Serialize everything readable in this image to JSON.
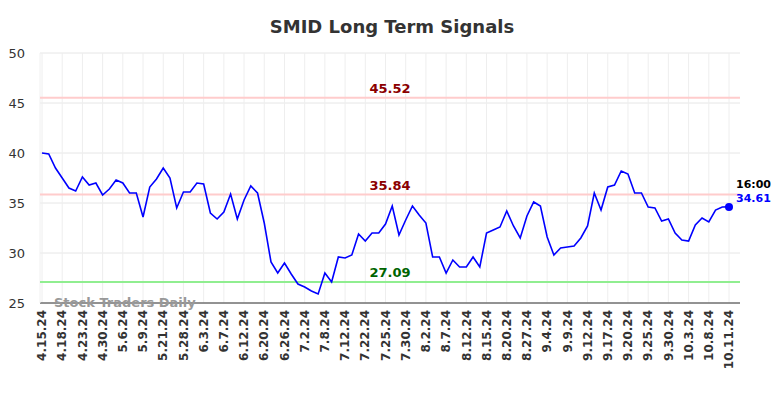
{
  "chart_data": {
    "type": "line",
    "title": "SMID Long Term Signals",
    "watermark": "Stock Traders Daily",
    "color": "#0000ff",
    "grid": true,
    "ylim": [
      25,
      50
    ],
    "yticks": [
      25,
      30,
      35,
      40,
      45,
      50
    ],
    "last_time": "16:00",
    "reference_lines": [
      {
        "value": 45.52,
        "color": "#ffcccc",
        "label_color": "#8b0000"
      },
      {
        "value": 35.84,
        "color": "#ffcccc",
        "label_color": "#8b0000"
      },
      {
        "value": 27.09,
        "color": "#90ee90",
        "label_color": "#006400"
      }
    ],
    "categories": [
      "4.15.24",
      null,
      null,
      "4.18.24",
      null,
      null,
      "4.23.24",
      null,
      null,
      "4.30.24",
      null,
      null,
      "5.6.24",
      null,
      null,
      "5.9.24",
      null,
      null,
      "5.21.24",
      null,
      null,
      "5.28.24",
      null,
      null,
      "6.3.24",
      null,
      null,
      "6.7.24",
      null,
      null,
      "6.12.24",
      null,
      null,
      "6.20.24",
      null,
      null,
      "6.26.24",
      null,
      null,
      "7.2.24",
      null,
      null,
      "7.8.24",
      null,
      null,
      "7.12.24",
      null,
      null,
      "7.22.24",
      null,
      null,
      "7.25.24",
      null,
      null,
      "7.30.24",
      null,
      null,
      "8.2.24",
      null,
      null,
      "8.7.24",
      null,
      null,
      "8.12.24",
      null,
      null,
      "8.15.24",
      null,
      null,
      "8.20.24",
      null,
      null,
      "8.27.24",
      null,
      null,
      "9.4.24",
      null,
      null,
      "9.9.24",
      null,
      null,
      "9.12.24",
      null,
      null,
      "9.17.24",
      null,
      null,
      "9.20.24",
      null,
      null,
      "9.25.24",
      null,
      null,
      "9.30.24",
      null,
      null,
      "10.3.24",
      null,
      null,
      "10.8.24",
      null,
      null,
      "10.11.24"
    ],
    "values": [
      40.0,
      39.9,
      38.5,
      37.5,
      36.5,
      36.2,
      37.6,
      36.8,
      37.0,
      35.8,
      36.4,
      37.3,
      37.0,
      36.0,
      36.0,
      33.6,
      36.6,
      37.4,
      38.5,
      37.5,
      34.5,
      36.1,
      36.1,
      37.0,
      36.9,
      34.0,
      33.4,
      34.1,
      35.9,
      33.4,
      35.3,
      36.7,
      36.0,
      33.0,
      29.1,
      28.0,
      29.0,
      27.9,
      26.9,
      26.6,
      26.2,
      25.9,
      28.0,
      27.1,
      29.6,
      29.5,
      29.8,
      31.9,
      31.2,
      32.0,
      32.0,
      32.9,
      34.7,
      31.8,
      33.3,
      34.7,
      33.8,
      33.0,
      29.6,
      29.6,
      28.0,
      29.3,
      28.6,
      28.6,
      29.6,
      28.6,
      32.0,
      32.3,
      32.6,
      34.2,
      32.7,
      31.5,
      33.7,
      35.1,
      34.7,
      31.6,
      29.8,
      30.5,
      30.6,
      30.7,
      31.5,
      32.7,
      36.0,
      34.3,
      36.6,
      36.8,
      38.2,
      37.9,
      36.0,
      36.0,
      34.6,
      34.5,
      33.2,
      33.4,
      32.0,
      31.3,
      31.2,
      32.8,
      33.5,
      33.1,
      34.3,
      34.6,
      34.61
    ]
  }
}
